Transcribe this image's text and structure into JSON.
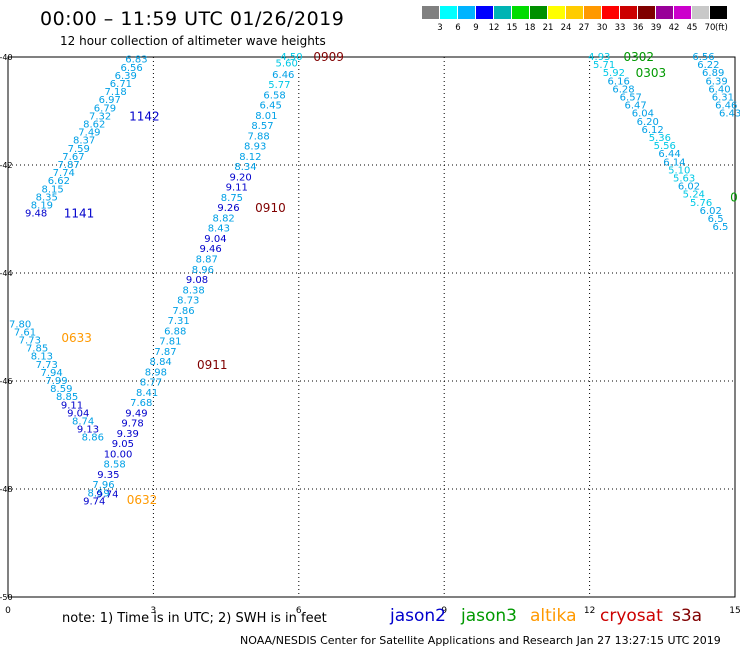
{
  "title": "00:00 – 11:59 UTC 01/26/2019",
  "subtitle": "12 hour collection of altimeter wave heights",
  "legend": {
    "colors": [
      "#808080",
      "#00ffff",
      "#00b4ff",
      "#0000ff",
      "#00b4b4",
      "#00dc00",
      "#009000",
      "#ffff00",
      "#ffcc00",
      "#ff9900",
      "#ff0000",
      "#cc0000",
      "#800000",
      "#990099",
      "#cc00cc",
      "#c8c8c8",
      "#000000"
    ],
    "labels": [
      "3",
      "6",
      "9",
      "12",
      "15",
      "18",
      "21",
      "24",
      "27",
      "30",
      "33",
      "36",
      "39",
      "42",
      "45",
      "70"
    ],
    "unit": "(ft)"
  },
  "footer": {
    "note": "note:  1) Time is in UTC;  2) SWH is in feet",
    "satellites": [
      {
        "name": "jason2",
        "color": "#0000cc"
      },
      {
        "name": "jason3",
        "color": "#009900"
      },
      {
        "name": "altika",
        "color": "#ff9900"
      },
      {
        "name": "cryosat",
        "color": "#cc0000"
      },
      {
        "name": "s3a",
        "color": "#800000"
      }
    ],
    "credit": "NOAA/NESDIS Center for Satellite Applications and Research     Jan 27 13:27:15 UTC 2019"
  },
  "chart_data": {
    "type": "scatter",
    "xlim": [
      0,
      15
    ],
    "ylim": [
      -50,
      -40
    ],
    "x_ticks": [
      "0",
      "3",
      "6",
      "9",
      "12",
      "15"
    ],
    "y_ticks": [
      "-40",
      "-42",
      "-44",
      "-46",
      "-48",
      "-50"
    ],
    "grid": true,
    "series": [
      {
        "label": "1142",
        "label_color": "#0000cc",
        "label_pos": [
          2.5,
          -41.1
        ],
        "points": [
          [
            2.65,
            -40.05,
            "6.83"
          ],
          [
            2.55,
            -40.2,
            "6.56"
          ],
          [
            2.43,
            -40.35,
            "6.39"
          ],
          [
            2.33,
            -40.5,
            "6.71"
          ],
          [
            2.22,
            -40.65,
            "7.18"
          ],
          [
            2.1,
            -40.8,
            "6.97"
          ],
          [
            2.0,
            -40.95,
            "6.79"
          ],
          [
            1.9,
            -41.1,
            "7.32"
          ],
          [
            1.78,
            -41.25,
            "8.62"
          ],
          [
            1.68,
            -41.4,
            "7.49"
          ],
          [
            1.57,
            -41.55,
            "8.37"
          ],
          [
            1.46,
            -41.7,
            "7.59"
          ]
        ]
      },
      {
        "label": "1141",
        "label_color": "#0000cc",
        "label_pos": [
          1.15,
          -42.9
        ],
        "points": [
          [
            1.35,
            -41.85,
            "7.67"
          ],
          [
            1.25,
            -42.0,
            "7.87"
          ],
          [
            1.15,
            -42.15,
            "7.74"
          ],
          [
            1.05,
            -42.3,
            "6.62"
          ],
          [
            0.92,
            -42.45,
            "8.15"
          ],
          [
            0.8,
            -42.6,
            "8.35"
          ],
          [
            0.7,
            -42.75,
            "8.19"
          ],
          [
            0.58,
            -42.9,
            "9.48"
          ]
        ]
      },
      {
        "label": "0909",
        "label_color": "#800000",
        "label_pos": [
          6.3,
          -40.0
        ],
        "points": [
          [
            5.85,
            -40.0,
            "4.50"
          ],
          [
            5.75,
            -40.12,
            "5.60"
          ],
          [
            5.68,
            -40.33,
            "6.46"
          ],
          [
            5.6,
            -40.52,
            "5.77"
          ],
          [
            5.5,
            -40.71,
            "6.58"
          ],
          [
            5.42,
            -40.9,
            "6.45"
          ],
          [
            5.33,
            -41.09,
            "8.01"
          ],
          [
            5.25,
            -41.28,
            "8.57"
          ],
          [
            5.17,
            -41.47,
            "7.88"
          ],
          [
            5.1,
            -41.66,
            "8.93"
          ],
          [
            5.0,
            -41.85,
            "8.12"
          ],
          [
            4.9,
            -42.04,
            "8.34"
          ],
          [
            4.8,
            -42.23,
            "9.20"
          ],
          [
            4.72,
            -42.42,
            "9.11"
          ],
          [
            4.62,
            -42.61,
            "8.75"
          ],
          [
            4.55,
            -42.8,
            "9.26"
          ]
        ]
      },
      {
        "label": "0910",
        "label_color": "#800000",
        "label_pos": [
          5.1,
          -42.8
        ],
        "points": [
          [
            4.45,
            -42.99,
            "8.82"
          ],
          [
            4.35,
            -43.18,
            "8.43"
          ],
          [
            4.28,
            -43.37,
            "9.04"
          ],
          [
            4.18,
            -43.56,
            "9.46"
          ],
          [
            4.1,
            -43.75,
            "8.87"
          ],
          [
            4.02,
            -43.94,
            "8.96"
          ],
          [
            3.9,
            -44.13,
            "9.08"
          ],
          [
            3.83,
            -44.32,
            "8.38"
          ],
          [
            3.72,
            -44.51,
            "8.73"
          ],
          [
            3.62,
            -44.7,
            "7.86"
          ],
          [
            3.52,
            -44.89,
            "7.31"
          ],
          [
            3.45,
            -45.08,
            "6.88"
          ],
          [
            3.35,
            -45.27,
            "7.81"
          ],
          [
            3.25,
            -45.46,
            "7.87"
          ],
          [
            3.15,
            -45.65,
            "8.84"
          ]
        ]
      },
      {
        "label": "0911",
        "label_color": "#800000",
        "label_pos": [
          3.9,
          -45.7
        ],
        "points": [
          [
            3.05,
            -45.84,
            "8.98"
          ],
          [
            2.95,
            -46.03,
            "8.77"
          ],
          [
            2.87,
            -46.22,
            "8.41"
          ],
          [
            2.75,
            -46.41,
            "7.68"
          ],
          [
            2.65,
            -46.6,
            "9.49"
          ],
          [
            2.57,
            -46.79,
            "9.78"
          ],
          [
            2.47,
            -46.98,
            "9.39"
          ],
          [
            2.37,
            -47.17,
            "9.05"
          ],
          [
            2.27,
            -47.36,
            "10.00"
          ],
          [
            2.2,
            -47.55,
            "8.58"
          ],
          [
            2.07,
            -47.74,
            "9.35"
          ],
          [
            1.97,
            -47.93,
            "7.96"
          ],
          [
            1.87,
            -48.08,
            "8.59"
          ],
          [
            1.78,
            -48.23,
            "9.74"
          ]
        ]
      },
      {
        "label": "0633",
        "label_color": "#ff9900",
        "label_pos": [
          1.1,
          -45.2
        ],
        "points": [
          [
            0.25,
            -44.95,
            "7.80"
          ],
          [
            0.35,
            -45.1,
            "7.61"
          ],
          [
            0.45,
            -45.25,
            "7.73"
          ],
          [
            0.6,
            -45.4,
            "7.85"
          ],
          [
            0.7,
            -45.55,
            "8.13"
          ],
          [
            0.8,
            -45.7,
            "7.73"
          ],
          [
            0.9,
            -45.85,
            "7.94"
          ],
          [
            1.0,
            -46.0,
            "7.99"
          ],
          [
            1.1,
            -46.15,
            "8.59"
          ],
          [
            1.22,
            -46.3,
            "8.85"
          ],
          [
            1.32,
            -46.45,
            "9.11"
          ],
          [
            1.45,
            -46.6,
            "9.04"
          ],
          [
            1.55,
            -46.75,
            "8.74"
          ],
          [
            1.65,
            -46.9,
            "9.13"
          ],
          [
            1.75,
            -47.05,
            "8.86"
          ]
        ]
      },
      {
        "label": "0632",
        "label_color": "#ff9900",
        "label_pos": [
          2.45,
          -48.2
        ],
        "points": [
          [
            2.05,
            -48.1,
            "9.74"
          ]
        ]
      },
      {
        "label": "0302",
        "label_color": "#009900",
        "label_pos": [
          12.7,
          -40.0
        ],
        "points": [
          [
            12.2,
            -40.0,
            "4.93"
          ],
          [
            12.3,
            -40.15,
            "5.71"
          ],
          [
            12.5,
            -40.3,
            "5.92"
          ],
          [
            12.6,
            -40.45,
            "6.16"
          ],
          [
            12.7,
            -40.6,
            "6.28"
          ],
          [
            12.85,
            -40.75,
            "6.57"
          ],
          [
            12.95,
            -40.9,
            "6.47"
          ],
          [
            13.1,
            -41.05,
            "6.04"
          ],
          [
            13.2,
            -41.2,
            "6.20"
          ]
        ]
      },
      {
        "label": "0303",
        "label_color": "#009900",
        "label_pos": [
          12.95,
          -40.3
        ],
        "points": [
          [
            13.3,
            -41.35,
            "6.12"
          ],
          [
            13.45,
            -41.5,
            "5.36"
          ],
          [
            13.55,
            -41.65,
            "5.56"
          ],
          [
            13.65,
            -41.8,
            "6.44"
          ],
          [
            13.75,
            -41.95,
            "6.14"
          ],
          [
            13.85,
            -42.1,
            "5.10"
          ],
          [
            13.95,
            -42.25,
            "5.63"
          ],
          [
            14.05,
            -42.4,
            "6.02"
          ],
          [
            14.15,
            -42.55,
            "5.24"
          ],
          [
            14.3,
            -42.7,
            "5.76"
          ],
          [
            14.5,
            -42.85,
            "6.02"
          ],
          [
            14.6,
            -43.0,
            "6.5"
          ],
          [
            14.7,
            -43.15,
            "6.5"
          ]
        ]
      },
      {
        "label": "0",
        "label_color": "#009900",
        "label_pos": [
          14.9,
          -42.6
        ],
        "points": [
          [
            14.35,
            -40.0,
            "6.56"
          ],
          [
            14.45,
            -40.15,
            "6.22"
          ],
          [
            14.55,
            -40.3,
            "6.89"
          ],
          [
            14.62,
            -40.45,
            "6.39"
          ],
          [
            14.68,
            -40.6,
            "6.40"
          ],
          [
            14.75,
            -40.75,
            "6.31"
          ],
          [
            14.82,
            -40.9,
            "6.46"
          ],
          [
            14.9,
            -41.05,
            "6.43"
          ]
        ]
      }
    ]
  }
}
